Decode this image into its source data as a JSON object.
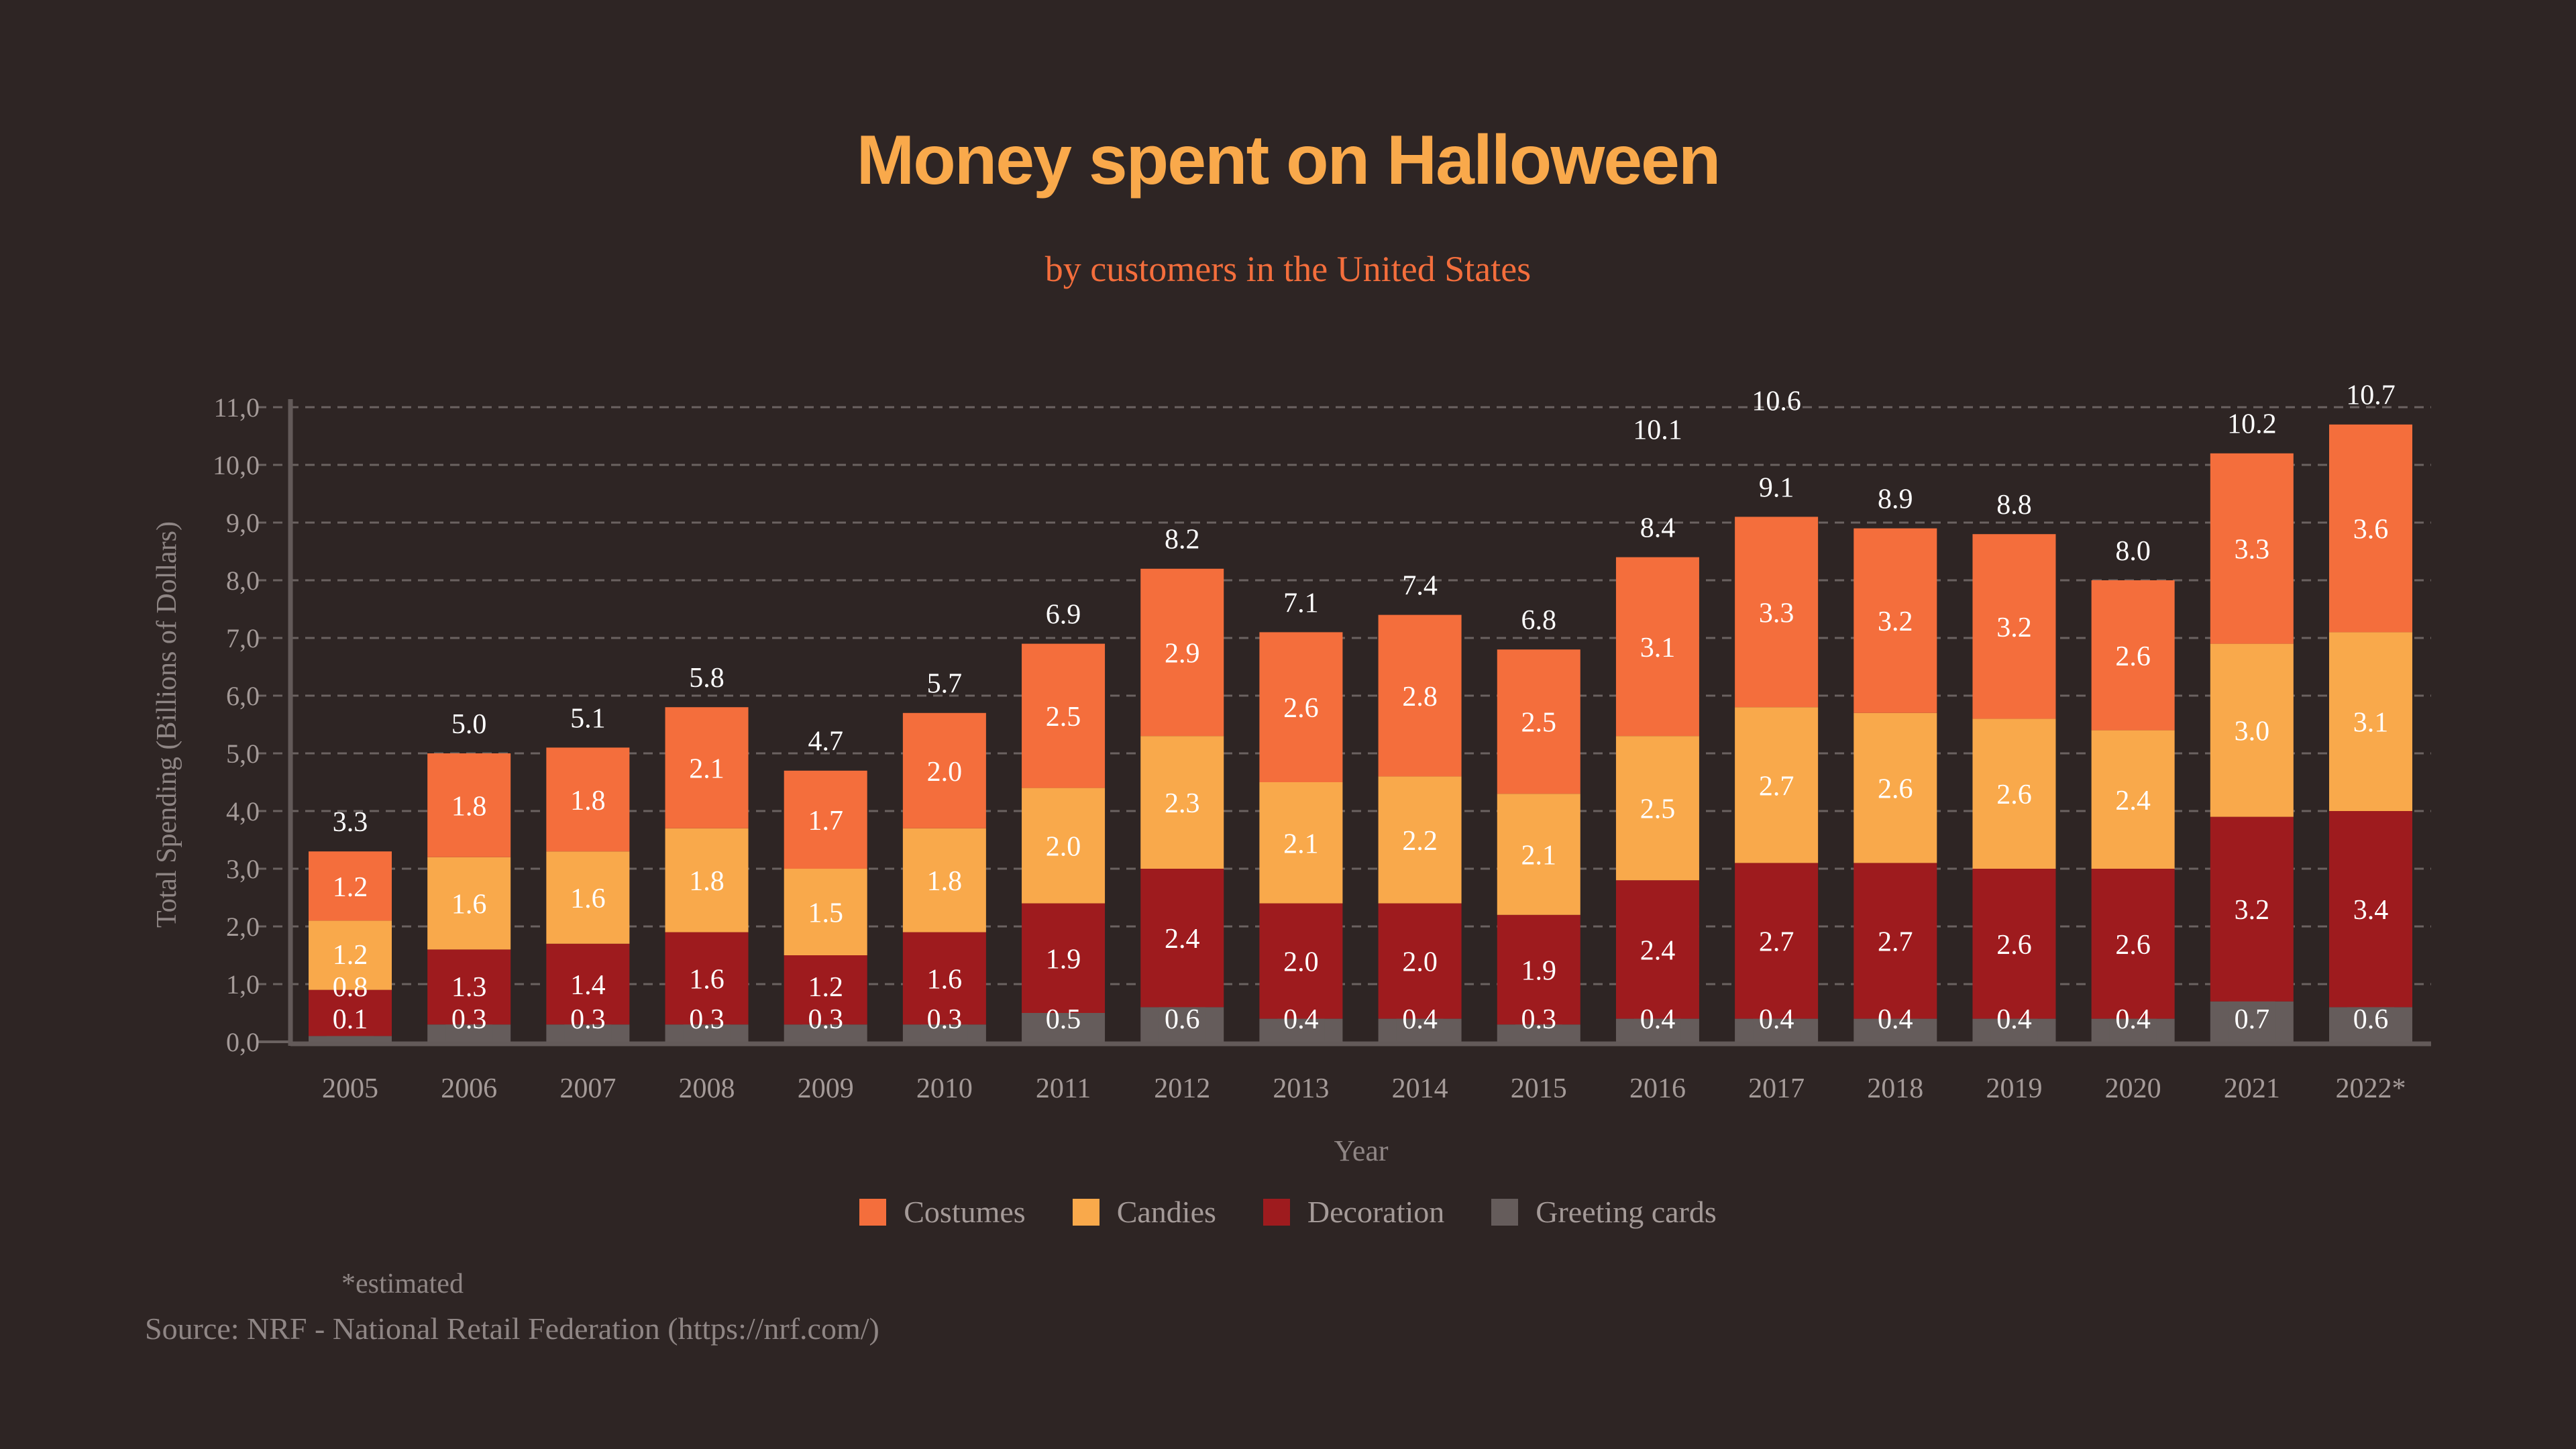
{
  "chart_data": {
    "type": "bar",
    "stacked": true,
    "title": "Money spent on Halloween",
    "subtitle": "by customers in the United States",
    "xlabel": "Year",
    "ylabel": "Total Spending (Billions of Dollars)",
    "ylim": [
      0,
      11
    ],
    "yticks": [
      "0,0",
      "1,0",
      "2,0",
      "3,0",
      "4,0",
      "5,0",
      "6,0",
      "7,0",
      "8,0",
      "9,0",
      "10,0",
      "11,0"
    ],
    "grid": true,
    "legend_position": "bottom",
    "categories": [
      "2005",
      "2006",
      "2007",
      "2008",
      "2009",
      "2010",
      "2011",
      "2012",
      "2013",
      "2014",
      "2015",
      "2016",
      "2017",
      "2018",
      "2019",
      "2020",
      "2021",
      "2022*"
    ],
    "series": [
      {
        "name": "Greeting cards",
        "color": "#655c5b",
        "values": [
          0.1,
          0.3,
          0.3,
          0.3,
          0.3,
          0.3,
          0.5,
          0.6,
          0.4,
          0.4,
          0.3,
          0.4,
          0.4,
          0.4,
          0.4,
          0.4,
          0.7,
          0.6
        ]
      },
      {
        "name": "Decoration",
        "color": "#9e1b1e",
        "values": [
          0.8,
          1.3,
          1.4,
          1.6,
          1.2,
          1.6,
          1.9,
          2.4,
          2.0,
          2.0,
          1.9,
          2.4,
          2.7,
          2.7,
          2.6,
          2.6,
          3.2,
          3.4
        ]
      },
      {
        "name": "Candies",
        "color": "#f9a94b",
        "values": [
          1.2,
          1.6,
          1.6,
          1.8,
          1.5,
          1.8,
          2.0,
          2.3,
          2.1,
          2.2,
          2.1,
          2.5,
          2.7,
          2.6,
          2.6,
          2.4,
          3.0,
          3.1
        ]
      },
      {
        "name": "Costumes",
        "color": "#f46e3c",
        "values": [
          1.2,
          1.8,
          1.8,
          2.1,
          1.7,
          2.0,
          2.5,
          2.9,
          2.6,
          2.8,
          2.5,
          3.1,
          3.3,
          3.2,
          3.2,
          2.6,
          3.3,
          3.6
        ]
      }
    ],
    "totals": [
      3.3,
      5.0,
      5.1,
      5.8,
      4.7,
      5.7,
      6.9,
      8.2,
      7.1,
      7.4,
      6.8,
      8.4,
      9.1,
      8.9,
      8.8,
      8.0,
      10.2,
      10.7
    ],
    "extra_labels": [
      {
        "category": "2016",
        "text": "10.1",
        "value": 10.1
      },
      {
        "category": "2017",
        "text": "10.6",
        "value": 10.6
      }
    ],
    "legend_order": [
      "Costumes",
      "Candies",
      "Decoration",
      "Greeting cards"
    ],
    "source": "Source: NRF - National Retail Federation (https://nrf.com/)",
    "note": "*estimated"
  }
}
